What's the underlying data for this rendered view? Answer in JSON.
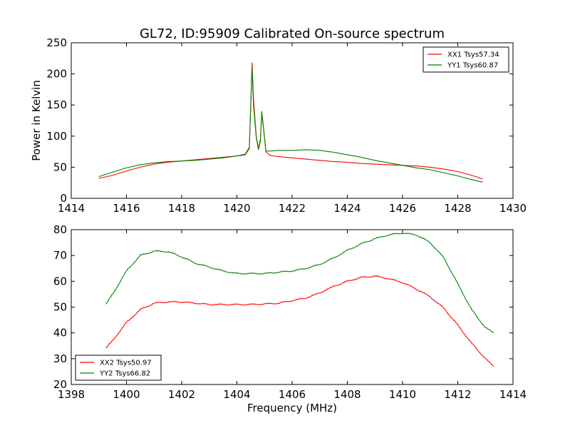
{
  "figure": {
    "title": "GL72, ID:95909 Calibrated On-source spectrum"
  },
  "chart_data": [
    {
      "type": "line",
      "panel": "top",
      "title": "GL72, ID:95909 Calibrated On-source spectrum",
      "xlabel": "",
      "ylabel": "Power in Kelvin",
      "xlim": [
        1414,
        1430
      ],
      "ylim": [
        0,
        250
      ],
      "xticks": [
        "1414",
        "1416",
        "1418",
        "1420",
        "1422",
        "1424",
        "1426",
        "1428",
        "1430"
      ],
      "yticks": [
        "0",
        "50",
        "100",
        "150",
        "200",
        "250"
      ],
      "legend_position": "top-right",
      "grid": false,
      "series": [
        {
          "name": "XX1 Tsys57.34",
          "color": "#ff0000",
          "points": [
            [
              1415.0,
              32
            ],
            [
              1415.5,
              37
            ],
            [
              1416.0,
              44
            ],
            [
              1416.5,
              50
            ],
            [
              1417.0,
              55
            ],
            [
              1417.5,
              58
            ],
            [
              1418.0,
              60
            ],
            [
              1418.5,
              62
            ],
            [
              1419.0,
              64
            ],
            [
              1419.5,
              66
            ],
            [
              1420.0,
              68
            ],
            [
              1420.3,
              70
            ],
            [
              1420.45,
              80
            ],
            [
              1420.55,
              218
            ],
            [
              1420.6,
              160
            ],
            [
              1420.7,
              100
            ],
            [
              1420.78,
              80
            ],
            [
              1420.85,
              95
            ],
            [
              1420.9,
              135
            ],
            [
              1420.95,
              120
            ],
            [
              1421.05,
              75
            ],
            [
              1421.2,
              69
            ],
            [
              1421.5,
              67
            ],
            [
              1422.0,
              65
            ],
            [
              1422.5,
              63
            ],
            [
              1423.0,
              61
            ],
            [
              1423.5,
              59
            ],
            [
              1424.0,
              58
            ],
            [
              1424.5,
              56
            ],
            [
              1425.0,
              55
            ],
            [
              1425.5,
              54
            ],
            [
              1426.0,
              53
            ],
            [
              1426.5,
              52
            ],
            [
              1427.0,
              50
            ],
            [
              1427.5,
              47
            ],
            [
              1428.0,
              43
            ],
            [
              1428.5,
              37
            ],
            [
              1428.9,
              31
            ]
          ]
        },
        {
          "name": "YY1 Tsys60.87",
          "color": "#008000",
          "points": [
            [
              1415.0,
              35
            ],
            [
              1415.5,
              42
            ],
            [
              1416.0,
              49
            ],
            [
              1416.5,
              54
            ],
            [
              1417.0,
              57
            ],
            [
              1417.5,
              59
            ],
            [
              1418.0,
              60
            ],
            [
              1418.5,
              61
            ],
            [
              1419.0,
              63
            ],
            [
              1419.5,
              65
            ],
            [
              1420.0,
              68
            ],
            [
              1420.3,
              71
            ],
            [
              1420.45,
              82
            ],
            [
              1420.55,
              210
            ],
            [
              1420.6,
              150
            ],
            [
              1420.7,
              98
            ],
            [
              1420.78,
              78
            ],
            [
              1420.85,
              92
            ],
            [
              1420.9,
              140
            ],
            [
              1420.95,
              118
            ],
            [
              1421.05,
              76
            ],
            [
              1421.2,
              76
            ],
            [
              1421.5,
              77
            ],
            [
              1422.0,
              77
            ],
            [
              1422.5,
              78
            ],
            [
              1423.0,
              77
            ],
            [
              1423.5,
              74
            ],
            [
              1424.0,
              70
            ],
            [
              1424.5,
              66
            ],
            [
              1425.0,
              61
            ],
            [
              1425.5,
              57
            ],
            [
              1426.0,
              53
            ],
            [
              1426.5,
              49
            ],
            [
              1427.0,
              46
            ],
            [
              1427.5,
              41
            ],
            [
              1428.0,
              36
            ],
            [
              1428.5,
              30
            ],
            [
              1428.9,
              26
            ]
          ]
        }
      ]
    },
    {
      "type": "line",
      "panel": "bottom",
      "title": "",
      "xlabel": "Frequency (MHz)",
      "ylabel": "",
      "xlim": [
        1398,
        1414
      ],
      "ylim": [
        20,
        80
      ],
      "xticks": [
        "1398",
        "1400",
        "1402",
        "1404",
        "1406",
        "1408",
        "1410",
        "1412",
        "1414"
      ],
      "yticks": [
        "20",
        "30",
        "40",
        "50",
        "60",
        "70",
        "80"
      ],
      "legend_position": "bottom-left",
      "grid": false,
      "series": [
        {
          "name": "XX2 Tsys50.97",
          "color": "#ff0000",
          "points": [
            [
              1399.25,
              34
            ],
            [
              1399.5,
              37
            ],
            [
              1400.0,
              44
            ],
            [
              1400.5,
              49
            ],
            [
              1401.0,
              51.5
            ],
            [
              1401.5,
              52
            ],
            [
              1402.0,
              52
            ],
            [
              1402.5,
              51.5
            ],
            [
              1403.0,
              51
            ],
            [
              1403.5,
              51
            ],
            [
              1404.0,
              51
            ],
            [
              1404.5,
              51
            ],
            [
              1405.0,
              51.2
            ],
            [
              1405.5,
              51.5
            ],
            [
              1406.0,
              52.5
            ],
            [
              1406.5,
              53.5
            ],
            [
              1407.0,
              55.5
            ],
            [
              1407.5,
              58
            ],
            [
              1408.0,
              60
            ],
            [
              1408.5,
              61.5
            ],
            [
              1409.0,
              62
            ],
            [
              1409.5,
              61
            ],
            [
              1410.0,
              59.5
            ],
            [
              1410.5,
              57
            ],
            [
              1411.0,
              54
            ],
            [
              1411.5,
              49.5
            ],
            [
              1412.0,
              43
            ],
            [
              1412.5,
              36
            ],
            [
              1413.0,
              30
            ],
            [
              1413.3,
              27
            ]
          ]
        },
        {
          "name": "YY2 Tsys66.82",
          "color": "#008000",
          "points": [
            [
              1399.25,
              51
            ],
            [
              1399.5,
              55
            ],
            [
              1400.0,
              64
            ],
            [
              1400.5,
              70
            ],
            [
              1401.0,
              71.7
            ],
            [
              1401.5,
              71.5
            ],
            [
              1402.0,
              69.5
            ],
            [
              1402.5,
              67
            ],
            [
              1403.0,
              65.5
            ],
            [
              1403.5,
              64
            ],
            [
              1404.0,
              63
            ],
            [
              1404.5,
              63
            ],
            [
              1405.0,
              63
            ],
            [
              1405.5,
              63.5
            ],
            [
              1406.0,
              64
            ],
            [
              1406.5,
              65
            ],
            [
              1407.0,
              66.5
            ],
            [
              1407.5,
              69
            ],
            [
              1408.0,
              72
            ],
            [
              1408.5,
              74.5
            ],
            [
              1409.0,
              76.5
            ],
            [
              1409.5,
              78
            ],
            [
              1410.0,
              78.7
            ],
            [
              1410.5,
              78
            ],
            [
              1411.0,
              75
            ],
            [
              1411.5,
              69
            ],
            [
              1412.0,
              59
            ],
            [
              1412.5,
              49
            ],
            [
              1413.0,
              42
            ],
            [
              1413.3,
              40
            ]
          ]
        }
      ]
    }
  ]
}
